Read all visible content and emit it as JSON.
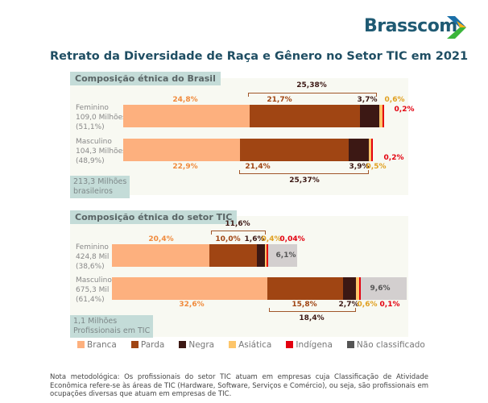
{
  "brand": "Brasscom",
  "title": "Retrato da Diversidade de Raça e Gênero no Setor TIC em 2021",
  "colors": {
    "Branca": "#fdb07e",
    "Parda": "#a04513",
    "Negra": "#3c1814",
    "Asiática": "#fdc56a",
    "Indígena": "#e3000f",
    "Não classificado": "#d3cfcf"
  },
  "chart_data": [
    {
      "type": "bar",
      "orientation": "horizontal",
      "stacked": true,
      "title": "Composição étnica do Brasil",
      "total_label": "213,3 Milhões\nbrasileiros",
      "categories": [
        "Feminino\n109,0 Milhões\n(51,1%)",
        "Masculino\n104,3 Milhões\n(48,9%)"
      ],
      "series": [
        {
          "name": "Branca",
          "values": [
            24.8,
            22.9
          ],
          "labels": [
            "24,8%",
            "22,9%"
          ]
        },
        {
          "name": "Parda",
          "values": [
            21.7,
            21.4
          ],
          "labels": [
            "21,7%",
            "21,4%"
          ]
        },
        {
          "name": "Negra",
          "values": [
            3.7,
            3.9
          ],
          "labels": [
            "3,7%",
            "3,9%"
          ]
        },
        {
          "name": "Asiática",
          "values": [
            0.6,
            0.5
          ],
          "labels": [
            "0,6%",
            "0,5%"
          ]
        },
        {
          "name": "Indígena",
          "values": [
            0.2,
            0.2
          ],
          "labels": [
            "0,2%",
            "0,2%"
          ]
        }
      ],
      "brackets": [
        "25,38%",
        "25,37%"
      ]
    },
    {
      "type": "bar",
      "orientation": "horizontal",
      "stacked": true,
      "title": "Composição étnica do setor TIC",
      "total_label": "1,1 Milhões\nProfissionais em TIC",
      "categories": [
        "Feminino\n424,8 Mil\n(38,6%)",
        "Masculino\n675,3 Mil\n(61,4%)"
      ],
      "series": [
        {
          "name": "Branca",
          "values": [
            20.4,
            32.6
          ],
          "labels": [
            "20,4%",
            "32,6%"
          ]
        },
        {
          "name": "Parda",
          "values": [
            10.0,
            15.8
          ],
          "labels": [
            "10,0%",
            "15,8%"
          ]
        },
        {
          "name": "Negra",
          "values": [
            1.6,
            2.7
          ],
          "labels": [
            "1,6%",
            "2,7%"
          ]
        },
        {
          "name": "Asiática",
          "values": [
            0.4,
            0.6
          ],
          "labels": [
            "0,4%",
            "0,6%"
          ]
        },
        {
          "name": "Indígena",
          "values": [
            0.04,
            0.1
          ],
          "labels": [
            "0,04%",
            "0,1%"
          ]
        },
        {
          "name": "Não classificado",
          "values": [
            6.1,
            9.6
          ],
          "labels": [
            "6,1%",
            "9,6%"
          ]
        }
      ],
      "brackets": [
        "11,6%",
        "18,4%"
      ]
    }
  ],
  "legend": [
    "Branca",
    "Parda",
    "Negra",
    "Asiática",
    "Indígena",
    "Não classificado"
  ],
  "note": "Nota metodológica: Os profissionais do setor TIC atuam em empresas cuja Classificação de Atividade Econômica refere-se às áreas de TIC (Hardware, Software, Serviços e Comércio), ou seja, são profissionais em ocupações diversas que atuam em empresas de TIC."
}
